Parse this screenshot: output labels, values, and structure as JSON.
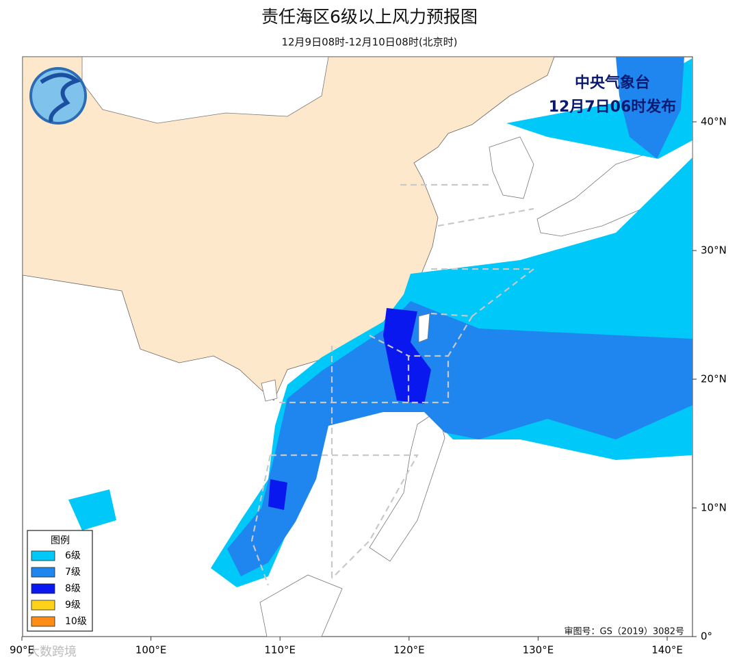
{
  "header": {
    "title": "责任海区6级以上风力预报图",
    "subtitle": "12月9日08时-12月10日08时(北京时)"
  },
  "issuer": [
    "中央气象台",
    "12月7日06时发布"
  ],
  "legend": {
    "title": "图例",
    "items": [
      {
        "label": "6级",
        "color": "#00c8f8"
      },
      {
        "label": "7级",
        "color": "#1f86f0"
      },
      {
        "label": "8级",
        "color": "#0a18f0"
      },
      {
        "label": "9级",
        "color": "#ffd21a"
      },
      {
        "label": "10级",
        "color": "#ff8c14"
      }
    ]
  },
  "axes": {
    "lon": [
      "90°E",
      "100°E",
      "110°E",
      "120°E",
      "130°E",
      "140°E"
    ],
    "lat": [
      "0°",
      "10°N",
      "20°N",
      "30°N",
      "40°N"
    ]
  },
  "map_number": "审图号：GS（2019）3082号",
  "watermark": "大数跨境"
}
